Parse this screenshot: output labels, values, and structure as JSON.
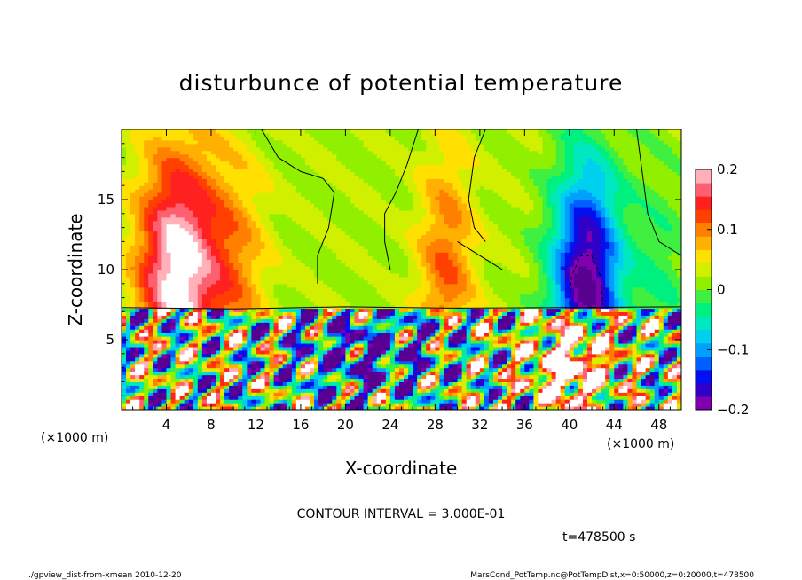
{
  "chart_data": {
    "type": "heatmap",
    "title": "disturbunce of potential temperature",
    "xlabel": "X-coordinate",
    "ylabel": "Z-coordinate",
    "x_unit": "(×1000 m)",
    "y_unit": "(×1000 m)",
    "xlim": [
      0,
      50
    ],
    "ylim": [
      0,
      20
    ],
    "x_ticks": [
      "4",
      "8",
      "12",
      "16",
      "20",
      "24",
      "28",
      "32",
      "36",
      "40",
      "44",
      "48"
    ],
    "y_ticks": [
      "5",
      "10",
      "15"
    ],
    "colorbar": {
      "range": [
        -0.2,
        0.2
      ],
      "tick_labels": [
        "0.2",
        "0.1",
        "0",
        "−0.1",
        "−0.2"
      ],
      "colors": [
        "#8000b0",
        "#3000c8",
        "#0010f0",
        "#0060ff",
        "#00a0ff",
        "#00d0f0",
        "#00e8c0",
        "#00f080",
        "#40f040",
        "#90f000",
        "#d0f000",
        "#ffe000",
        "#ffb000",
        "#ff8000",
        "#ff4000",
        "#ff2020",
        "#ff6070",
        "#ffb0b8"
      ]
    },
    "contour_interval_text": "CONTOUR INTERVAL = 3.000E-01",
    "time_text": "t=478500 s",
    "features_upper_layer": [
      {
        "x_center": 5,
        "x_width": 3.5,
        "amplitude": 0.2
      },
      {
        "x_center": 10,
        "x_width": 3,
        "amplitude": 0.07
      },
      {
        "x_center": 29,
        "x_width": 2.5,
        "amplitude": 0.09
      },
      {
        "x_center": 41.5,
        "x_width": 3,
        "amplitude": -0.23
      },
      {
        "x_center": 48,
        "x_width": 3,
        "amplitude": -0.04
      }
    ]
  },
  "footer": {
    "left": "./gpview_dist-from-xmean  2010-12-20",
    "right": "MarsCond_PotTemp.nc@PotTempDist,x=0:50000,z=0:20000,t=478500"
  }
}
